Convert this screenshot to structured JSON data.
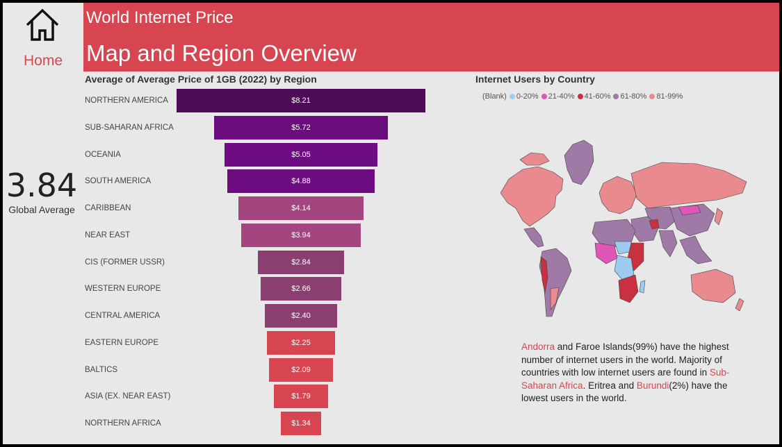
{
  "nav": {
    "home_label": "Home"
  },
  "header": {
    "supertitle": "World Internet Price",
    "title": "Map and Region Overview"
  },
  "kpi": {
    "value": "3.84",
    "label": "Global Average"
  },
  "funnel": {
    "title": "Average of Average Price of 1GB (2022) by Region",
    "rows": [
      {
        "region": "NORTHERN AMERICA",
        "value": 8.21,
        "label": "$8.21",
        "color": "#4e0b57"
      },
      {
        "region": "SUB-SAHARAN AFRICA",
        "value": 5.72,
        "label": "$5.72",
        "color": "#6a0c7c"
      },
      {
        "region": "OCEANIA",
        "value": 5.05,
        "label": "$5.05",
        "color": "#6c0c80"
      },
      {
        "region": "SOUTH AMERICA",
        "value": 4.88,
        "label": "$4.88",
        "color": "#6c0c80"
      },
      {
        "region": "CARIBBEAN",
        "value": 4.14,
        "label": "$4.14",
        "color": "#a3457f"
      },
      {
        "region": "NEAR EAST",
        "value": 3.94,
        "label": "$3.94",
        "color": "#a3457f"
      },
      {
        "region": "CIS (FORMER USSR)",
        "value": 2.84,
        "label": "$2.84",
        "color": "#8a3f70"
      },
      {
        "region": "WESTERN EUROPE",
        "value": 2.66,
        "label": "$2.66",
        "color": "#8a3f70"
      },
      {
        "region": "CENTRAL AMERICA",
        "value": 2.4,
        "label": "$2.40",
        "color": "#8a3f70"
      },
      {
        "region": "EASTERN EUROPE",
        "value": 2.25,
        "label": "$2.25",
        "color": "#d64550"
      },
      {
        "region": "BALTICS",
        "value": 2.09,
        "label": "$2.09",
        "color": "#d64550"
      },
      {
        "region": "ASIA (EX. NEAR EAST)",
        "value": 1.79,
        "label": "$1.79",
        "color": "#d64550"
      },
      {
        "region": "NORTHERN AFRICA",
        "value": 1.34,
        "label": "$1.34",
        "color": "#d64550"
      }
    ]
  },
  "map": {
    "title": "Internet Users by Country",
    "legend": [
      {
        "label": "(Blank)",
        "color": ""
      },
      {
        "label": "0-20%",
        "color": "#9ecbf0"
      },
      {
        "label": "21-40%",
        "color": "#e055b8"
      },
      {
        "label": "41-60%",
        "color": "#c93040"
      },
      {
        "label": "61-80%",
        "color": "#a07aa6"
      },
      {
        "label": "81-99%",
        "color": "#e88a8e"
      }
    ]
  },
  "note": {
    "part1": "Andorra",
    "part2": " and Faroe Islands(99%) have the highest number of internet users in the world. Majority of countries with low internet users are found in ",
    "part3": "Sub-Saharan Africa",
    "part4": ". Eritrea and ",
    "part5": "Burundi",
    "part6": "(2%) have the lowest users in the world."
  },
  "chart_data": {
    "type": "bar",
    "title": "Average of Average Price of 1GB (2022) by Region",
    "categories": [
      "NORTHERN AMERICA",
      "SUB-SAHARAN AFRICA",
      "OCEANIA",
      "SOUTH AMERICA",
      "CARIBBEAN",
      "NEAR EAST",
      "CIS (FORMER USSR)",
      "WESTERN EUROPE",
      "CENTRAL AMERICA",
      "EASTERN EUROPE",
      "BALTICS",
      "ASIA (EX. NEAR EAST)",
      "NORTHERN AFRICA"
    ],
    "values": [
      8.21,
      5.72,
      5.05,
      4.88,
      4.14,
      3.94,
      2.84,
      2.66,
      2.4,
      2.25,
      2.09,
      1.79,
      1.34
    ]
  }
}
